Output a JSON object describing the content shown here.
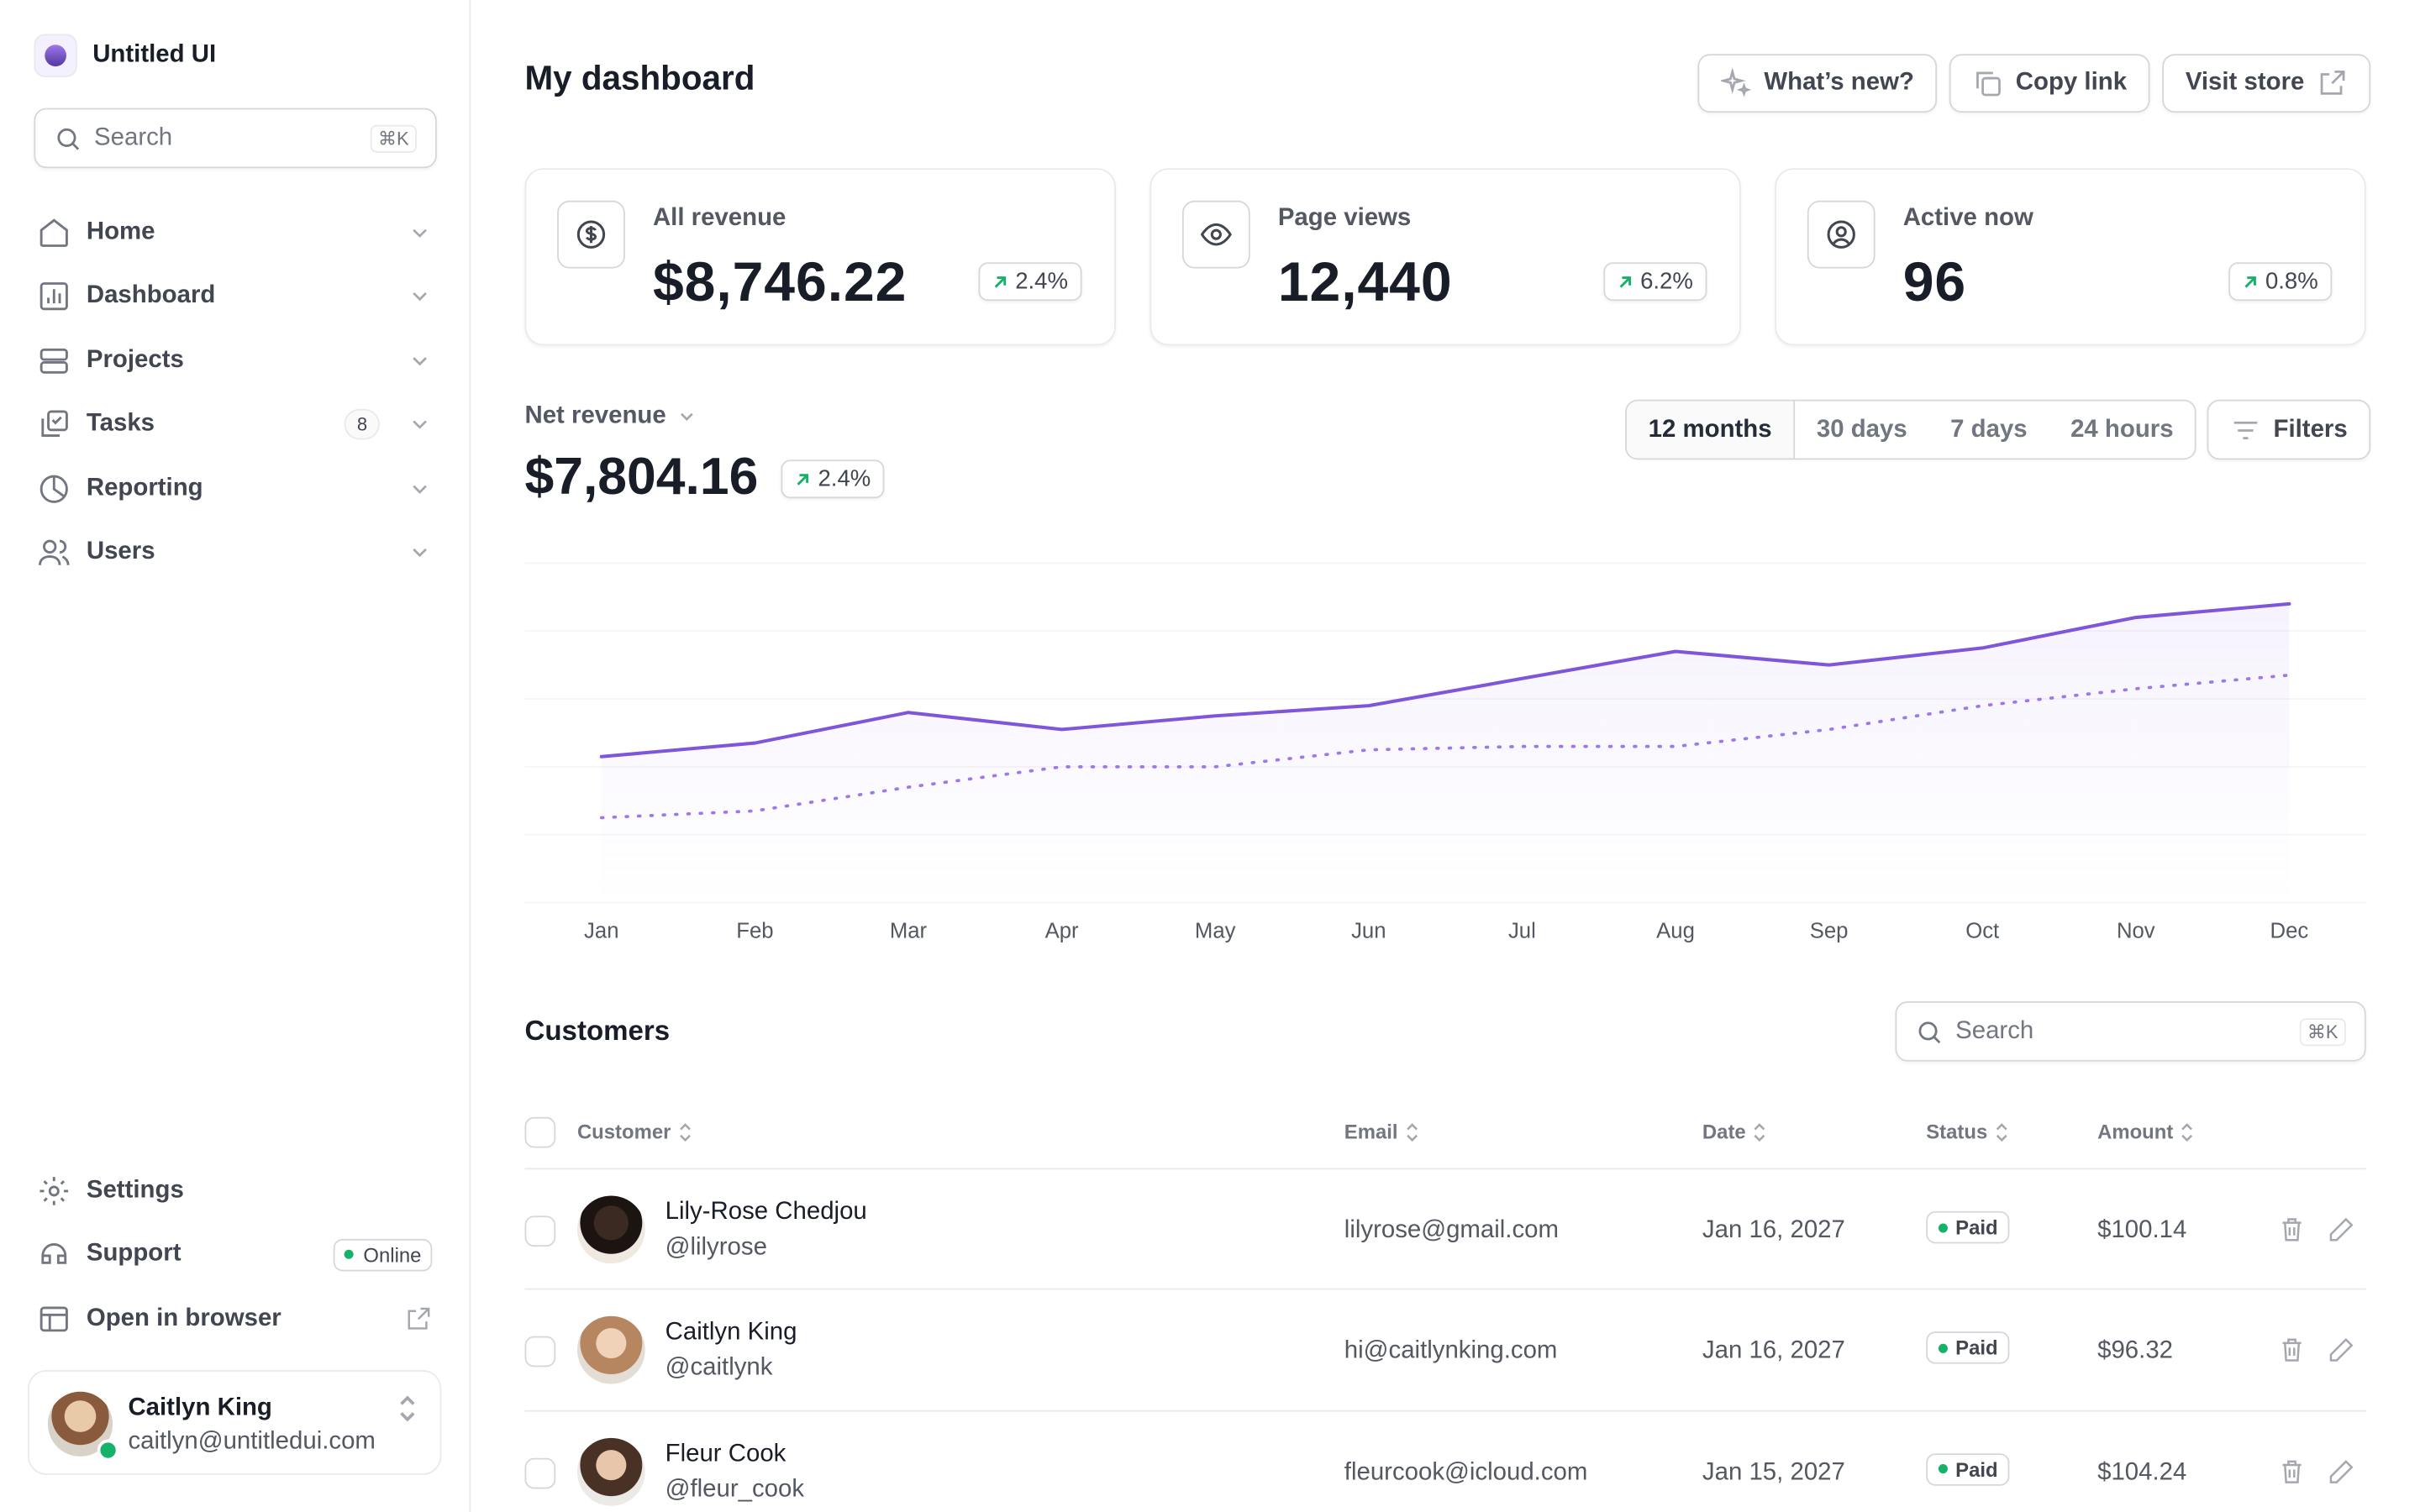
{
  "sidebar": {
    "brand": "Untitled UI",
    "search": "Search",
    "shortcut": "⌘K",
    "nav": [
      {
        "label": "Home"
      },
      {
        "label": "Dashboard"
      },
      {
        "label": "Projects"
      },
      {
        "label": "Tasks",
        "badge": 8
      },
      {
        "label": "Reporting"
      },
      {
        "label": "Users"
      }
    ],
    "footer_nav": [
      {
        "label": "Settings"
      },
      {
        "label": "Support",
        "badge": "Online"
      },
      {
        "label": "Open in browser"
      }
    ],
    "user": {
      "name": "Caitlyn King",
      "email": "caitlyn@untitledui.com"
    }
  },
  "header": {
    "title": "My dashboard",
    "buttons": [
      "What’s new?",
      "Copy link",
      "Visit store"
    ]
  },
  "stats": [
    {
      "label": "All revenue",
      "value": "$8,746.22",
      "change": "2.4%"
    },
    {
      "label": "Page views",
      "value": "12,440",
      "change": "6.2%"
    },
    {
      "label": "Active now",
      "value": "96",
      "change": "0.8%"
    }
  ],
  "net_revenue": {
    "label": "Net revenue",
    "value": "$7,804.16",
    "change": "2.4%",
    "ranges": [
      "12 months",
      "30 days",
      "7 days",
      "24 hours"
    ],
    "filters": "Filters"
  },
  "chart_data": {
    "type": "line",
    "categories": [
      "Jan",
      "Feb",
      "Mar",
      "Apr",
      "May",
      "Jun",
      "Jul",
      "Aug",
      "Sep",
      "Oct",
      "Nov",
      "Dec"
    ],
    "series": [
      {
        "color": "#7f56d9",
        "values": [
          43,
          47,
          56,
          51,
          55,
          58,
          66,
          74,
          70,
          75,
          84,
          88
        ]
      },
      {
        "color": "#9e77ed",
        "dashed": true,
        "values": [
          25,
          27,
          34,
          40,
          40,
          45,
          46,
          46,
          51,
          58,
          63,
          67
        ]
      }
    ],
    "ylim": [
      0,
      100
    ],
    "yticks": [
      0,
      20,
      40,
      60,
      80,
      100
    ],
    "grid": true
  },
  "customers": {
    "title": "Customers",
    "search": "Search",
    "shortcut": "⌘K",
    "columns": [
      "Customer",
      "Email",
      "Date",
      "Status",
      "Amount"
    ],
    "rows": [
      {
        "name": "Lily-Rose Chedjou",
        "handle": "@lilyrose",
        "email": "lilyrose@gmail.com",
        "date": "Jan 16, 2027",
        "status": "Paid",
        "amount": "$100.14"
      },
      {
        "name": "Caitlyn King",
        "handle": "@caitlynk",
        "email": "hi@caitlynking.com",
        "date": "Jan 16, 2027",
        "status": "Paid",
        "amount": "$96.32"
      },
      {
        "name": "Fleur Cook",
        "handle": "@fleur_cook",
        "email": "fleurcook@icloud.com",
        "date": "Jan 15, 2027",
        "status": "Paid",
        "amount": "$104.24"
      }
    ]
  }
}
